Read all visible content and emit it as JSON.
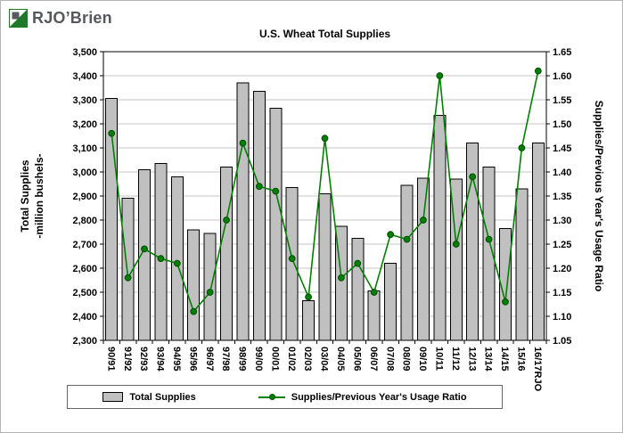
{
  "logo": {
    "text": "RJO’Brien"
  },
  "legend": {
    "bar_label": "Total Supplies",
    "line_label": "Supplies/Previous Year's Usage Ratio"
  },
  "chart_data": {
    "type": "bar",
    "title": "U.S. Wheat Total Supplies",
    "grid": true,
    "legend_position": "bottom",
    "categories": [
      "90/91",
      "91/92",
      "92/93",
      "93/94",
      "94/95",
      "95/96",
      "96/97",
      "97/98",
      "98/99",
      "99/00",
      "00/01",
      "01/02",
      "02/03",
      "03/04",
      "04/05",
      "05/06",
      "06/07",
      "07/08",
      "08/09",
      "09/10",
      "10/11",
      "11/12",
      "12/13",
      "13/14",
      "14/15",
      "15/16",
      "16/17RJO"
    ],
    "series": [
      {
        "name": "Total Supplies",
        "type": "bar",
        "axis": "left",
        "color": "#C0C0C0",
        "values": [
          3305,
          2890,
          3010,
          3035,
          2980,
          2760,
          2745,
          3020,
          3370,
          3335,
          3265,
          2935,
          2465,
          2910,
          2775,
          2725,
          2505,
          2620,
          2945,
          2975,
          3235,
          2970,
          3120,
          3020,
          2765,
          2930,
          3120
        ]
      },
      {
        "name": "Supplies/Previous Year's Usage Ratio",
        "type": "line",
        "axis": "right",
        "color": "#008000",
        "values": [
          1.48,
          1.18,
          1.24,
          1.22,
          1.21,
          1.11,
          1.15,
          1.3,
          1.46,
          1.37,
          1.36,
          1.22,
          1.14,
          1.47,
          1.18,
          1.21,
          1.15,
          1.27,
          1.26,
          1.3,
          1.6,
          1.25,
          1.39,
          1.26,
          1.13,
          1.45,
          1.61
        ]
      }
    ],
    "y_left": {
      "label_lines": [
        "Total Supplies",
        "-million bushels-"
      ],
      "min": 2300,
      "max": 3500,
      "step": 100
    },
    "y_right": {
      "label": "Supplies/Previous Year's Usage Ratio",
      "min": 1.05,
      "max": 1.65,
      "step": 0.05
    }
  }
}
